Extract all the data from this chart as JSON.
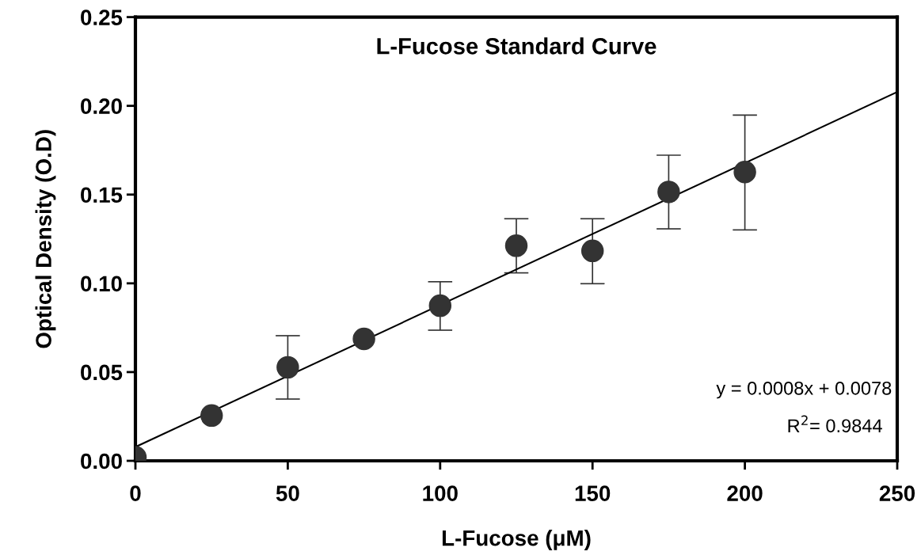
{
  "chart_data": {
    "type": "scatter",
    "title": "L-Fucose Standard Curve",
    "xlabel": "L-Fucose (μM)",
    "ylabel": "Optical Density (O.D)",
    "annotations": [
      "y = 0.0008x + 0.0078",
      "R$^{2}$= 0.9844"
    ],
    "xlim": [
      0,
      250
    ],
    "xticks": [
      0,
      50,
      100,
      150,
      200,
      250
    ],
    "ylim": [
      0,
      0.25
    ],
    "yticks": [
      {
        "value": 0,
        "label": "0.00"
      },
      {
        "value": 0.05,
        "label": "0.05"
      },
      {
        "value": 0.1,
        "label": "0.10"
      },
      {
        "value": 0.15,
        "label": "0.15"
      },
      {
        "value": 0.2,
        "label": "0.20"
      },
      {
        "value": 0.25,
        "label": "0.25"
      }
    ],
    "grid": false,
    "legend": false,
    "series": [
      {
        "marker": "circle",
        "color": "#333333",
        "x": [
          0,
          25,
          50,
          75,
          100,
          125,
          150,
          175,
          200
        ],
        "values": [
          0.002,
          0.0255,
          0.0527,
          0.0687,
          0.0874,
          0.1212,
          0.1183,
          0.1515,
          0.1627
        ],
        "errors": [
          null,
          null,
          [
            0.0348,
            0.0705
          ],
          null,
          [
            0.0736,
            0.1009
          ],
          [
            0.1059,
            0.1364
          ],
          [
            0.0998,
            0.1364
          ],
          [
            0.1307,
            0.1722
          ],
          [
            0.1301,
            0.1948
          ]
        ]
      },
      {
        "type": "line",
        "color": "#000000",
        "x": [
          0,
          250
        ],
        "values": [
          0.0078,
          0.2078
        ]
      }
    ]
  }
}
